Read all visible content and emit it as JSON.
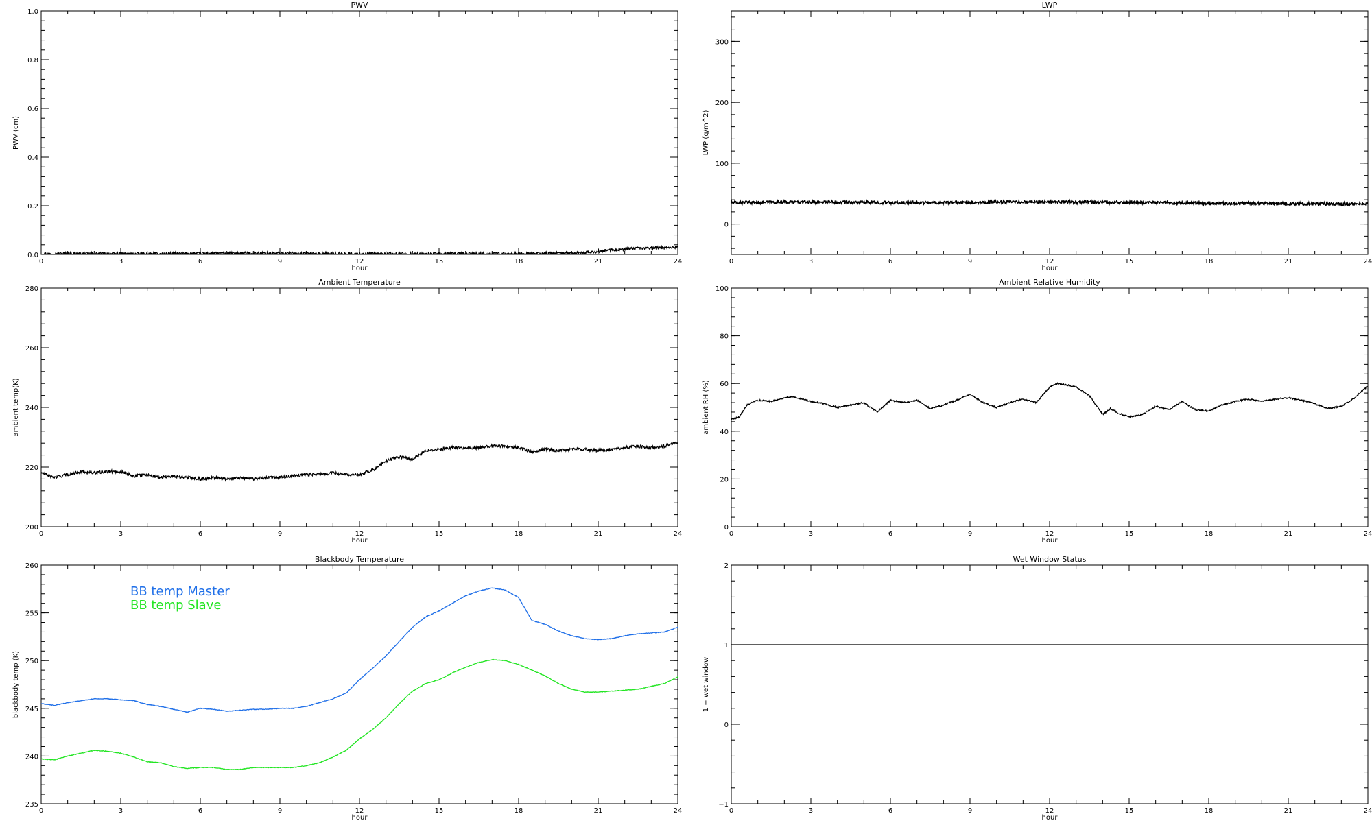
{
  "chart_data": [
    {
      "id": "pwv",
      "type": "line",
      "title": "PWV",
      "xlabel": "hour",
      "ylabel": "PWV (cm)",
      "xlim": [
        0,
        24
      ],
      "ylim": [
        0,
        1.0
      ],
      "xticks": [
        0,
        3,
        6,
        9,
        12,
        15,
        18,
        21,
        24
      ],
      "yticks": [
        0.0,
        0.2,
        0.4,
        0.6,
        0.8,
        1.0
      ],
      "ytick_labels": [
        "0.0",
        "0.2",
        "0.4",
        "0.6",
        "0.8",
        "1.0"
      ],
      "grid": false,
      "series": [
        {
          "color": "#000000",
          "noise": 0.006,
          "x": [
            0,
            1,
            2,
            3,
            4,
            5,
            6,
            7,
            8,
            9,
            10,
            11,
            12,
            13,
            14,
            15,
            16,
            17,
            18,
            19,
            20,
            20.5,
            21,
            21.5,
            22,
            22.5,
            23,
            23.5,
            24
          ],
          "y": [
            0.002,
            0.003,
            0.003,
            0.002,
            0.002,
            0.003,
            0.004,
            0.004,
            0.005,
            0.004,
            0.003,
            0.003,
            0.002,
            0.002,
            0.002,
            0.002,
            0.003,
            0.003,
            0.003,
            0.004,
            0.005,
            0.007,
            0.012,
            0.018,
            0.022,
            0.025,
            0.027,
            0.029,
            0.03
          ]
        }
      ]
    },
    {
      "id": "lwp",
      "type": "line",
      "title": "LWP",
      "xlabel": "hour",
      "ylabel": "LWP (g/m^2)",
      "xlim": [
        0,
        24
      ],
      "ylim": [
        -50,
        350
      ],
      "xticks": [
        0,
        3,
        6,
        9,
        12,
        15,
        18,
        21,
        24
      ],
      "yticks": [
        0,
        100,
        200,
        300
      ],
      "ytick_labels": [
        "0",
        "100",
        "200",
        "300"
      ],
      "grid": false,
      "series": [
        {
          "color": "#000000",
          "noise": 2.5,
          "x": [
            0,
            2,
            4,
            6,
            8,
            10,
            12,
            14,
            16,
            18,
            20,
            22,
            24
          ],
          "y": [
            35,
            36,
            36,
            35,
            35,
            36,
            36,
            36,
            35,
            34,
            34,
            33,
            33
          ]
        }
      ]
    },
    {
      "id": "ambient-temp",
      "type": "line",
      "title": "Ambient Temperature",
      "xlabel": "hour",
      "ylabel": "ambient temp(K)",
      "xlim": [
        0,
        24
      ],
      "ylim": [
        200,
        280
      ],
      "xticks": [
        0,
        3,
        6,
        9,
        12,
        15,
        18,
        21,
        24
      ],
      "yticks": [
        200,
        220,
        240,
        260,
        280
      ],
      "ytick_labels": [
        "200",
        "220",
        "240",
        "260",
        "280"
      ],
      "grid": false,
      "series": [
        {
          "color": "#000000",
          "noise": 0.5,
          "x": [
            0,
            0.5,
            1,
            1.5,
            2,
            2.5,
            3,
            3.5,
            4,
            4.5,
            5,
            5.5,
            6,
            6.5,
            7,
            7.5,
            8,
            8.5,
            9,
            9.5,
            10,
            10.5,
            11,
            11.5,
            12,
            12.5,
            13,
            13.5,
            14,
            14.5,
            15,
            15.5,
            16,
            16.5,
            17,
            17.5,
            18,
            18.5,
            19,
            19.5,
            20,
            20.5,
            21,
            21.5,
            22,
            22.5,
            23,
            23.5,
            24
          ],
          "y": [
            218,
            216.5,
            217.5,
            218.5,
            218,
            218.5,
            218.5,
            217,
            217.5,
            216.5,
            217,
            216.5,
            216,
            216.5,
            216,
            216.5,
            216,
            216.5,
            216.5,
            217,
            217.5,
            217.5,
            218,
            217.5,
            217.5,
            219,
            222,
            223.5,
            222.5,
            225.5,
            226,
            226.5,
            226.5,
            226.5,
            227,
            227,
            226.5,
            225,
            226,
            225.5,
            226,
            226,
            225.5,
            226,
            226.5,
            227,
            226.5,
            227,
            228.5
          ]
        }
      ]
    },
    {
      "id": "ambient-rh",
      "type": "line",
      "title": "Ambient Relative Humidity",
      "xlabel": "hour",
      "ylabel": "ambient RH (%)",
      "xlim": [
        0,
        24
      ],
      "ylim": [
        0,
        100
      ],
      "xticks": [
        0,
        3,
        6,
        9,
        12,
        15,
        18,
        21,
        24
      ],
      "yticks": [
        0,
        20,
        40,
        60,
        80,
        100
      ],
      "ytick_labels": [
        "0",
        "20",
        "40",
        "60",
        "80",
        "100"
      ],
      "grid": false,
      "series": [
        {
          "color": "#000000",
          "noise": 0.3,
          "x": [
            0,
            0.3,
            0.6,
            1,
            1.5,
            2,
            2.3,
            2.7,
            3,
            3.5,
            4,
            4.5,
            5,
            5.5,
            6,
            6.5,
            7,
            7.5,
            8,
            8.5,
            9,
            9.5,
            10,
            10.5,
            11,
            11.5,
            12,
            12.3,
            12.6,
            13,
            13.5,
            14,
            14.3,
            14.6,
            15,
            15.5,
            16,
            16.5,
            17,
            17.5,
            18,
            18.5,
            19,
            19.5,
            20,
            20.5,
            21,
            21.5,
            22,
            22.5,
            23,
            23.5,
            24
          ],
          "y": [
            45,
            46,
            51,
            53,
            52.5,
            54,
            54.5,
            53.5,
            52.5,
            51.5,
            50,
            51,
            52,
            48,
            53,
            52,
            53,
            49.5,
            51,
            53,
            55.5,
            52,
            50,
            52,
            53.5,
            52,
            58.5,
            60,
            59.5,
            58.5,
            55,
            47,
            49.5,
            47.5,
            46,
            47,
            50.5,
            49,
            52.5,
            49,
            48.5,
            51,
            52.5,
            53.5,
            52.5,
            53.5,
            54,
            53,
            51.5,
            49.5,
            50.5,
            54,
            59
          ]
        }
      ]
    },
    {
      "id": "blackbody-temp",
      "type": "line",
      "title": "Blackbody Temperature",
      "xlabel": "hour",
      "ylabel": "blackbody temp (K)",
      "xlim": [
        0,
        24
      ],
      "ylim": [
        235,
        260
      ],
      "xticks": [
        0,
        3,
        6,
        9,
        12,
        15,
        18,
        21,
        24
      ],
      "yticks": [
        235,
        240,
        245,
        250,
        255,
        260
      ],
      "ytick_labels": [
        "235",
        "240",
        "245",
        "250",
        "255",
        "260"
      ],
      "grid": false,
      "legend": "top-left",
      "series": [
        {
          "name": "BB temp Master",
          "color": "#1f6fe8",
          "noise": 0.03,
          "x": [
            0,
            0.5,
            1,
            1.5,
            2,
            2.5,
            3,
            3.5,
            4,
            4.5,
            5,
            5.5,
            6,
            6.5,
            7,
            7.5,
            8,
            8.5,
            9,
            9.5,
            10,
            10.5,
            11,
            11.5,
            12,
            12.5,
            13,
            13.5,
            14,
            14.5,
            15,
            15.5,
            16,
            16.5,
            17,
            17.5,
            18,
            18.5,
            19,
            19.5,
            20,
            20.5,
            21,
            21.5,
            22,
            22.5,
            23,
            23.5,
            24
          ],
          "y": [
            245.5,
            245.3,
            245.6,
            245.8,
            246,
            246,
            245.9,
            245.8,
            245.4,
            245.2,
            244.9,
            244.6,
            245,
            244.9,
            244.7,
            244.8,
            244.9,
            244.9,
            245,
            245,
            245.2,
            245.6,
            246,
            246.6,
            248,
            249.2,
            250.5,
            252,
            253.5,
            254.6,
            255.2,
            256,
            256.8,
            257.3,
            257.6,
            257.4,
            256.6,
            254.2,
            253.8,
            253.1,
            252.6,
            252.3,
            252.2,
            252.3,
            252.6,
            252.8,
            252.9,
            253,
            253.5
          ]
        },
        {
          "name": "BB temp Slave",
          "color": "#22e522",
          "noise": 0.03,
          "x": [
            0,
            0.5,
            1,
            1.5,
            2,
            2.5,
            3,
            3.5,
            4,
            4.5,
            5,
            5.5,
            6,
            6.5,
            7,
            7.5,
            8,
            8.5,
            9,
            9.5,
            10,
            10.5,
            11,
            11.5,
            12,
            12.5,
            13,
            13.5,
            14,
            14.5,
            15,
            15.5,
            16,
            16.5,
            17,
            17.5,
            18,
            18.5,
            19,
            19.5,
            20,
            20.5,
            21,
            21.5,
            22,
            22.5,
            23,
            23.5,
            24
          ],
          "y": [
            239.7,
            239.6,
            240,
            240.3,
            240.6,
            240.5,
            240.3,
            239.9,
            239.4,
            239.3,
            238.9,
            238.7,
            238.8,
            238.8,
            238.6,
            238.6,
            238.8,
            238.8,
            238.8,
            238.8,
            239,
            239.3,
            239.9,
            240.6,
            241.8,
            242.8,
            244,
            245.5,
            246.8,
            247.6,
            248,
            248.7,
            249.3,
            249.8,
            250.1,
            250,
            249.6,
            249,
            248.4,
            247.6,
            247,
            246.7,
            246.7,
            246.8,
            246.9,
            247,
            247.3,
            247.6,
            248.3
          ]
        }
      ]
    },
    {
      "id": "wet-window",
      "type": "line",
      "title": "Wet Window Status",
      "xlabel": "hour",
      "ylabel": "1 = wet window",
      "xlim": [
        0,
        24
      ],
      "ylim": [
        -1,
        2
      ],
      "xticks": [
        0,
        3,
        6,
        9,
        12,
        15,
        18,
        21,
        24
      ],
      "yticks": [
        -1,
        0,
        1,
        2
      ],
      "ytick_labels": [
        "−1",
        "0",
        "1",
        "2"
      ],
      "grid": false,
      "series": [
        {
          "color": "#000000",
          "noise": 0,
          "x": [
            0,
            24
          ],
          "y": [
            1,
            1
          ]
        }
      ]
    }
  ]
}
